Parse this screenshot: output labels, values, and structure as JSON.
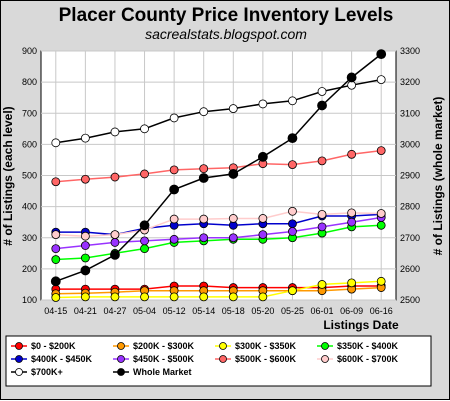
{
  "chart_data": {
    "type": "line",
    "title": "Placer County Price Inventory Levels",
    "subtitle": "sacrealstats.blogspot.com",
    "xlabel": "Listings Date",
    "ylabel_left": "# of Listings (each level)",
    "ylabel_right": "# of Listings (whole market)",
    "categories": [
      "04-15",
      "04-21",
      "04-27",
      "05-04",
      "05-12",
      "05-14",
      "05-18",
      "05-20",
      "05-25",
      "06-01",
      "06-09",
      "06-16"
    ],
    "ylim_left": [
      100,
      900
    ],
    "yticks_left": [
      100,
      200,
      300,
      400,
      500,
      600,
      700,
      800,
      900
    ],
    "ylim_right": [
      2500,
      3300
    ],
    "yticks_right": [
      2500,
      2600,
      2700,
      2800,
      2900,
      3000,
      3100,
      3200,
      3300
    ],
    "grid": true,
    "legend_position": "bottom",
    "series": [
      {
        "name": "$0 - $200K",
        "color": "#ff0000",
        "axis": "left",
        "values": [
          135,
          135,
          135,
          135,
          145,
          145,
          140,
          140,
          140,
          140,
          145,
          145
        ]
      },
      {
        "name": "$200K - $300K",
        "color": "#ff9900",
        "axis": "left",
        "values": [
          120,
          122,
          125,
          130,
          130,
          130,
          130,
          130,
          130,
          130,
          135,
          140
        ]
      },
      {
        "name": "$300K - $350K",
        "color": "#ffff00",
        "axis": "left",
        "values": [
          108,
          110,
          110,
          110,
          110,
          110,
          110,
          110,
          130,
          150,
          155,
          160
        ]
      },
      {
        "name": "$350K - $400K",
        "color": "#00ff00",
        "axis": "left",
        "values": [
          230,
          235,
          250,
          265,
          285,
          290,
          295,
          295,
          300,
          315,
          335,
          340
        ]
      },
      {
        "name": "$400K - $450K",
        "color": "#0000cc",
        "axis": "left",
        "values": [
          318,
          318,
          310,
          330,
          340,
          345,
          340,
          345,
          345,
          370,
          370,
          375
        ]
      },
      {
        "name": "$450K - $500K",
        "color": "#9933ff",
        "axis": "left",
        "values": [
          265,
          275,
          285,
          290,
          295,
          300,
          300,
          310,
          320,
          335,
          350,
          365
        ]
      },
      {
        "name": "$500K - $600K",
        "color": "#ff6666",
        "axis": "left",
        "values": [
          480,
          488,
          495,
          505,
          518,
          522,
          525,
          538,
          535,
          547,
          568,
          580
        ]
      },
      {
        "name": "$600K - $700K",
        "color": "#ffcccc",
        "axis": "left",
        "values": [
          310,
          305,
          310,
          325,
          360,
          360,
          362,
          362,
          385,
          375,
          380,
          378
        ]
      },
      {
        "name": "$700K+",
        "color": "#ffffff",
        "axis": "left",
        "values": [
          605,
          620,
          640,
          650,
          685,
          705,
          715,
          730,
          740,
          770,
          790,
          808
        ]
      },
      {
        "name": "Whole Market",
        "color": "#000000",
        "axis": "right",
        "values": [
          2560,
          2595,
          2645,
          2740,
          2855,
          2892,
          2905,
          2960,
          3020,
          3125,
          3215,
          3290
        ]
      }
    ]
  }
}
